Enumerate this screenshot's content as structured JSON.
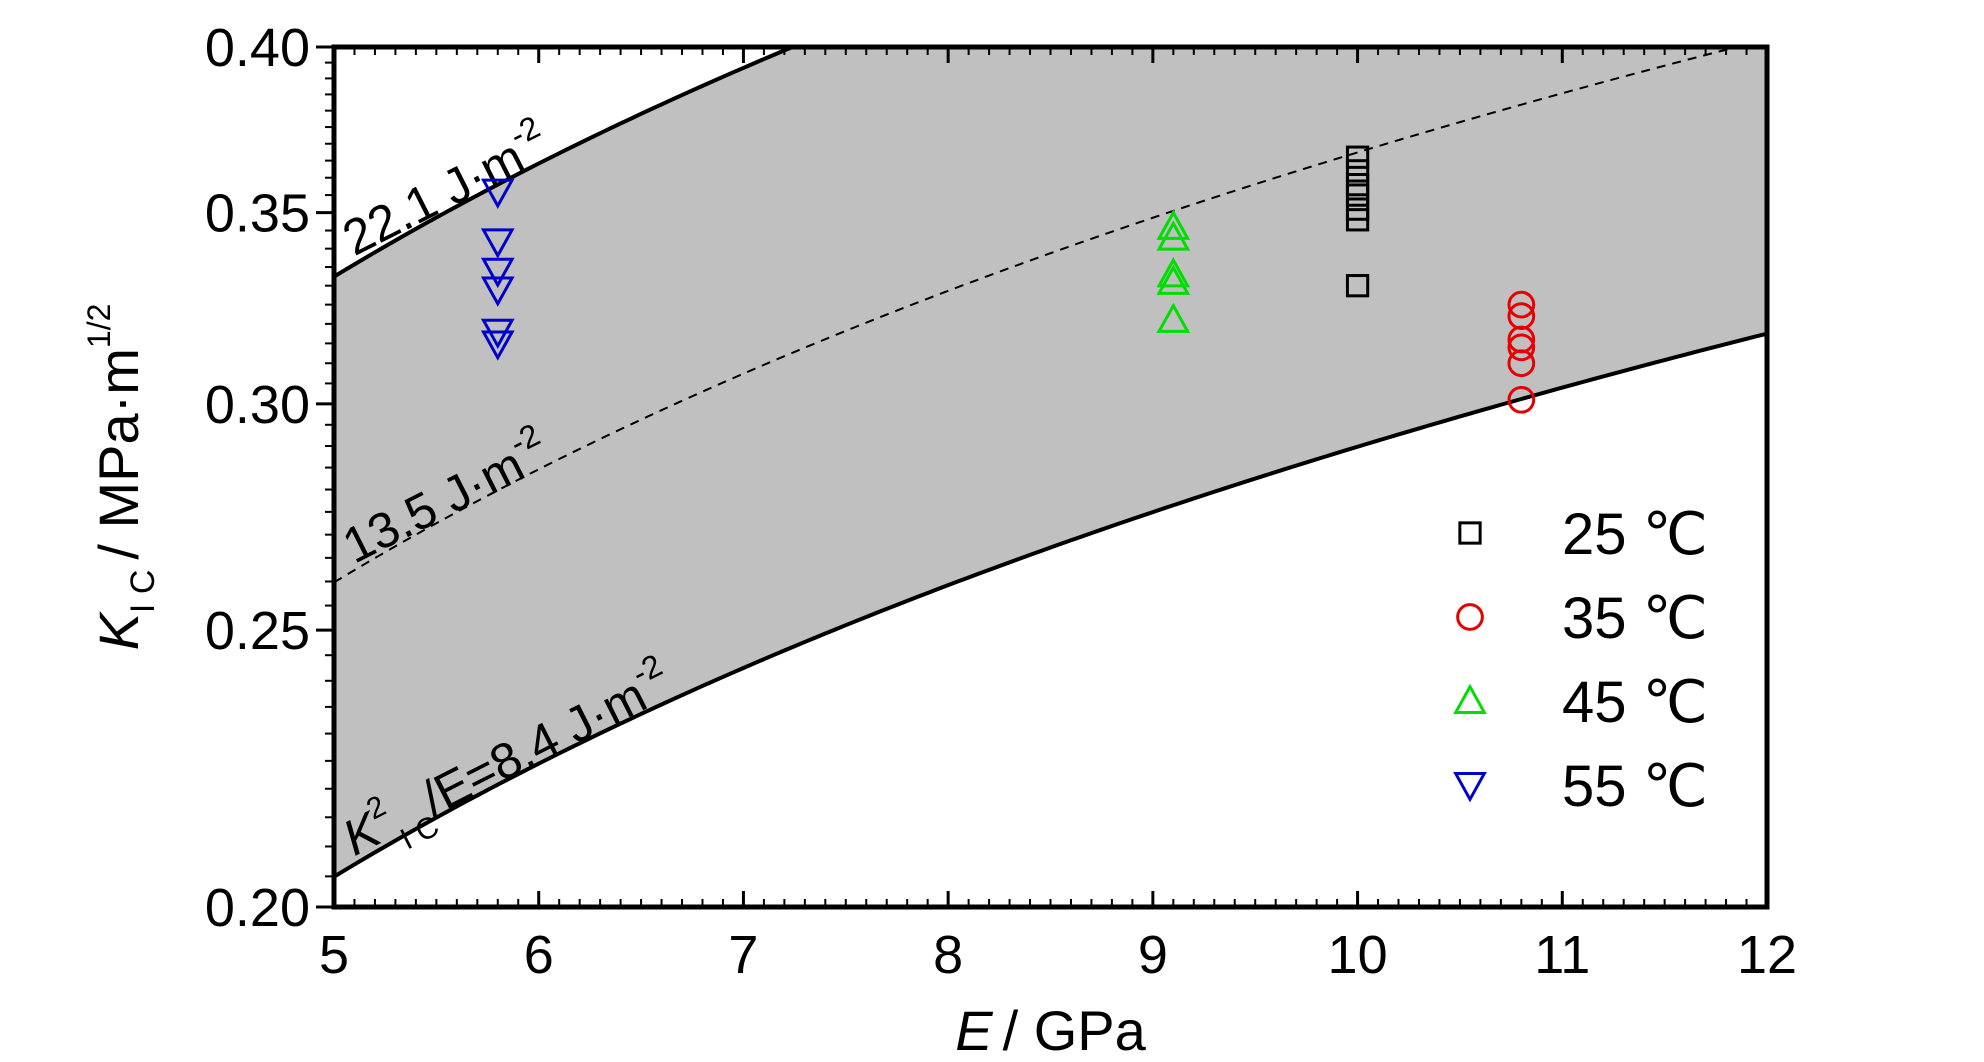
{
  "chart_data": {
    "type": "scatter",
    "xlabel": {
      "var": "E",
      "unit": "/ GPa"
    },
    "ylabel": {
      "var": "K",
      "sub": "I C",
      "unit": "/ MPa·m",
      "sup": "1/2"
    },
    "xlim": [
      5,
      12
    ],
    "ylim": [
      0.2,
      0.4
    ],
    "y_scale": "log",
    "x_ticks": [
      "5",
      "6",
      "7",
      "8",
      "9",
      "10",
      "11",
      "12"
    ],
    "y_ticks": [
      "0.20",
      "0.25",
      "0.30",
      "0.35",
      "0.40"
    ],
    "y_tick_values": [
      0.2,
      0.25,
      0.3,
      0.35,
      0.4
    ],
    "grid": false,
    "legend_position": "bottom-right",
    "shaded_band": {
      "between": [
        "22.1 J·m⁻²",
        "8.4 J·m⁻²"
      ],
      "color": "#c0c0c0"
    },
    "lines": [
      {
        "energy": 22.1,
        "style": "solid",
        "label": {
          "main": "22.1 J·m",
          "sup": "-2"
        }
      },
      {
        "energy": 13.5,
        "style": "dashed",
        "label": {
          "main": "13.5 J·m",
          "sup": "-2"
        }
      },
      {
        "energy": 8.4,
        "style": "solid",
        "label": {
          "pre": "K",
          "pre_sup": "2",
          "pre_sub": "I C",
          "main": "/E=8.4 J·m",
          "sup": "-2"
        }
      }
    ],
    "series": [
      {
        "name": "25 ℃",
        "marker": "square",
        "color": "#000000",
        "points": [
          [
            10.0,
            0.366
          ],
          [
            10.0,
            0.362
          ],
          [
            10.0,
            0.358
          ],
          [
            10.0,
            0.355
          ],
          [
            10.0,
            0.351
          ],
          [
            10.0,
            0.348
          ],
          [
            10.0,
            0.33
          ]
        ]
      },
      {
        "name": "35 ℃",
        "marker": "circle",
        "color": "#e60000",
        "points": [
          [
            10.8,
            0.325
          ],
          [
            10.8,
            0.322
          ],
          [
            10.8,
            0.316
          ],
          [
            10.8,
            0.314
          ],
          [
            10.8,
            0.31
          ],
          [
            10.8,
            0.301
          ]
        ]
      },
      {
        "name": "45 ℃",
        "marker": "triangle-up",
        "color": "#00dd00",
        "points": [
          [
            9.1,
            0.346
          ],
          [
            9.1,
            0.343
          ],
          [
            9.1,
            0.333
          ],
          [
            9.1,
            0.331
          ],
          [
            9.1,
            0.321
          ]
        ]
      },
      {
        "name": "55 ℃",
        "marker": "triangle-down",
        "color": "#0000cc",
        "points": [
          [
            5.8,
            0.356
          ],
          [
            5.8,
            0.342
          ],
          [
            5.8,
            0.334
          ],
          [
            5.8,
            0.329
          ],
          [
            5.8,
            0.318
          ],
          [
            5.8,
            0.315
          ]
        ]
      }
    ]
  }
}
